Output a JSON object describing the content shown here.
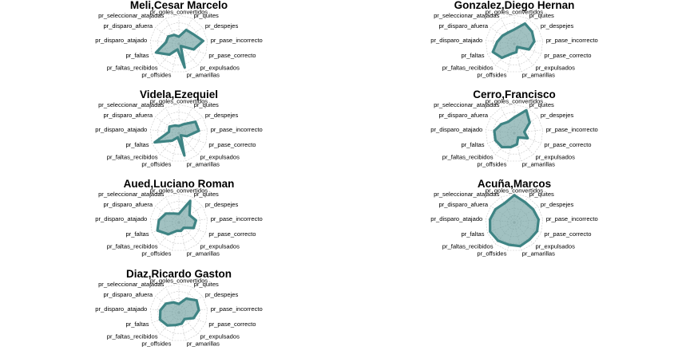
{
  "chart_data": {
    "type": "radar",
    "variables": [
      "pr_goles_convertidos",
      "pr_quites",
      "pr_despejes",
      "pr_pase_incorrecto",
      "pr_pase_correcto",
      "pr_expulsados",
      "pr_amarillas",
      "pr_offsides",
      "pr_faltas_recibidos",
      "pr_faltas",
      "pr_disparo_atajado",
      "pr_disparo_afuera",
      "pr_seleccionar_atajadas"
    ],
    "axis_labels": [
      "pr_goles_convertidos",
      "pr_quites",
      "pr_despejes",
      "pr_pase_incorrecto",
      "pr_pase_correcto",
      "pr_expulsados",
      "pr_amarillas",
      "pr_offsides",
      "pr_faltas_recibidos",
      "pr_faltas",
      "pr_disparo_atajado",
      "pr_disparo_afuera",
      "pr_seleccionar_atajadas"
    ],
    "range": [
      0,
      1
    ],
    "grid_levels": 4,
    "fill_color": "#6fa0a0",
    "line_color": "#3e8484",
    "grid_color": "#c8c8c8",
    "legend": "none",
    "panels": [
      {
        "title": "Meli,Cesar Marcelo",
        "values": [
          0.25,
          0.55,
          0.6,
          0.85,
          0.55,
          0.1,
          0.85,
          0.2,
          0.5,
          0.85,
          0.45,
          0.45,
          0.35
        ]
      },
      {
        "title": "Gonzalez,Diego Hernan",
        "values": [
          0.5,
          0.8,
          0.75,
          0.7,
          0.55,
          0.15,
          0.3,
          0.35,
          0.65,
          0.8,
          0.6,
          0.5,
          0.45
        ]
      },
      {
        "title": "Videla,Ezequiel",
        "values": [
          0.25,
          0.35,
          0.7,
          0.7,
          0.3,
          0.1,
          0.8,
          0.15,
          0.35,
          0.9,
          0.35,
          0.4,
          0.3
        ]
      },
      {
        "title": "Cerro,Francisco",
        "values": [
          0.55,
          0.9,
          0.65,
          0.35,
          0.5,
          0.2,
          0.4,
          0.5,
          0.65,
          0.7,
          0.7,
          0.55,
          0.45
        ]
      },
      {
        "title": "Aued,Luciano Roman",
        "values": [
          0.3,
          0.85,
          0.45,
          0.6,
          0.55,
          0.25,
          0.3,
          0.3,
          0.55,
          0.8,
          0.7,
          0.55,
          0.35
        ]
      },
      {
        "title": "Acuña,Marcos",
        "values": [
          0.95,
          0.8,
          0.8,
          0.85,
          0.85,
          0.8,
          0.85,
          0.8,
          0.85,
          0.9,
          0.85,
          0.8,
          0.75
        ]
      },
      {
        "title": "Diaz,Ricardo Gaston",
        "values": [
          0.3,
          0.55,
          0.75,
          0.7,
          0.55,
          0.3,
          0.4,
          0.45,
          0.6,
          0.7,
          0.65,
          0.55,
          0.4
        ]
      }
    ]
  }
}
